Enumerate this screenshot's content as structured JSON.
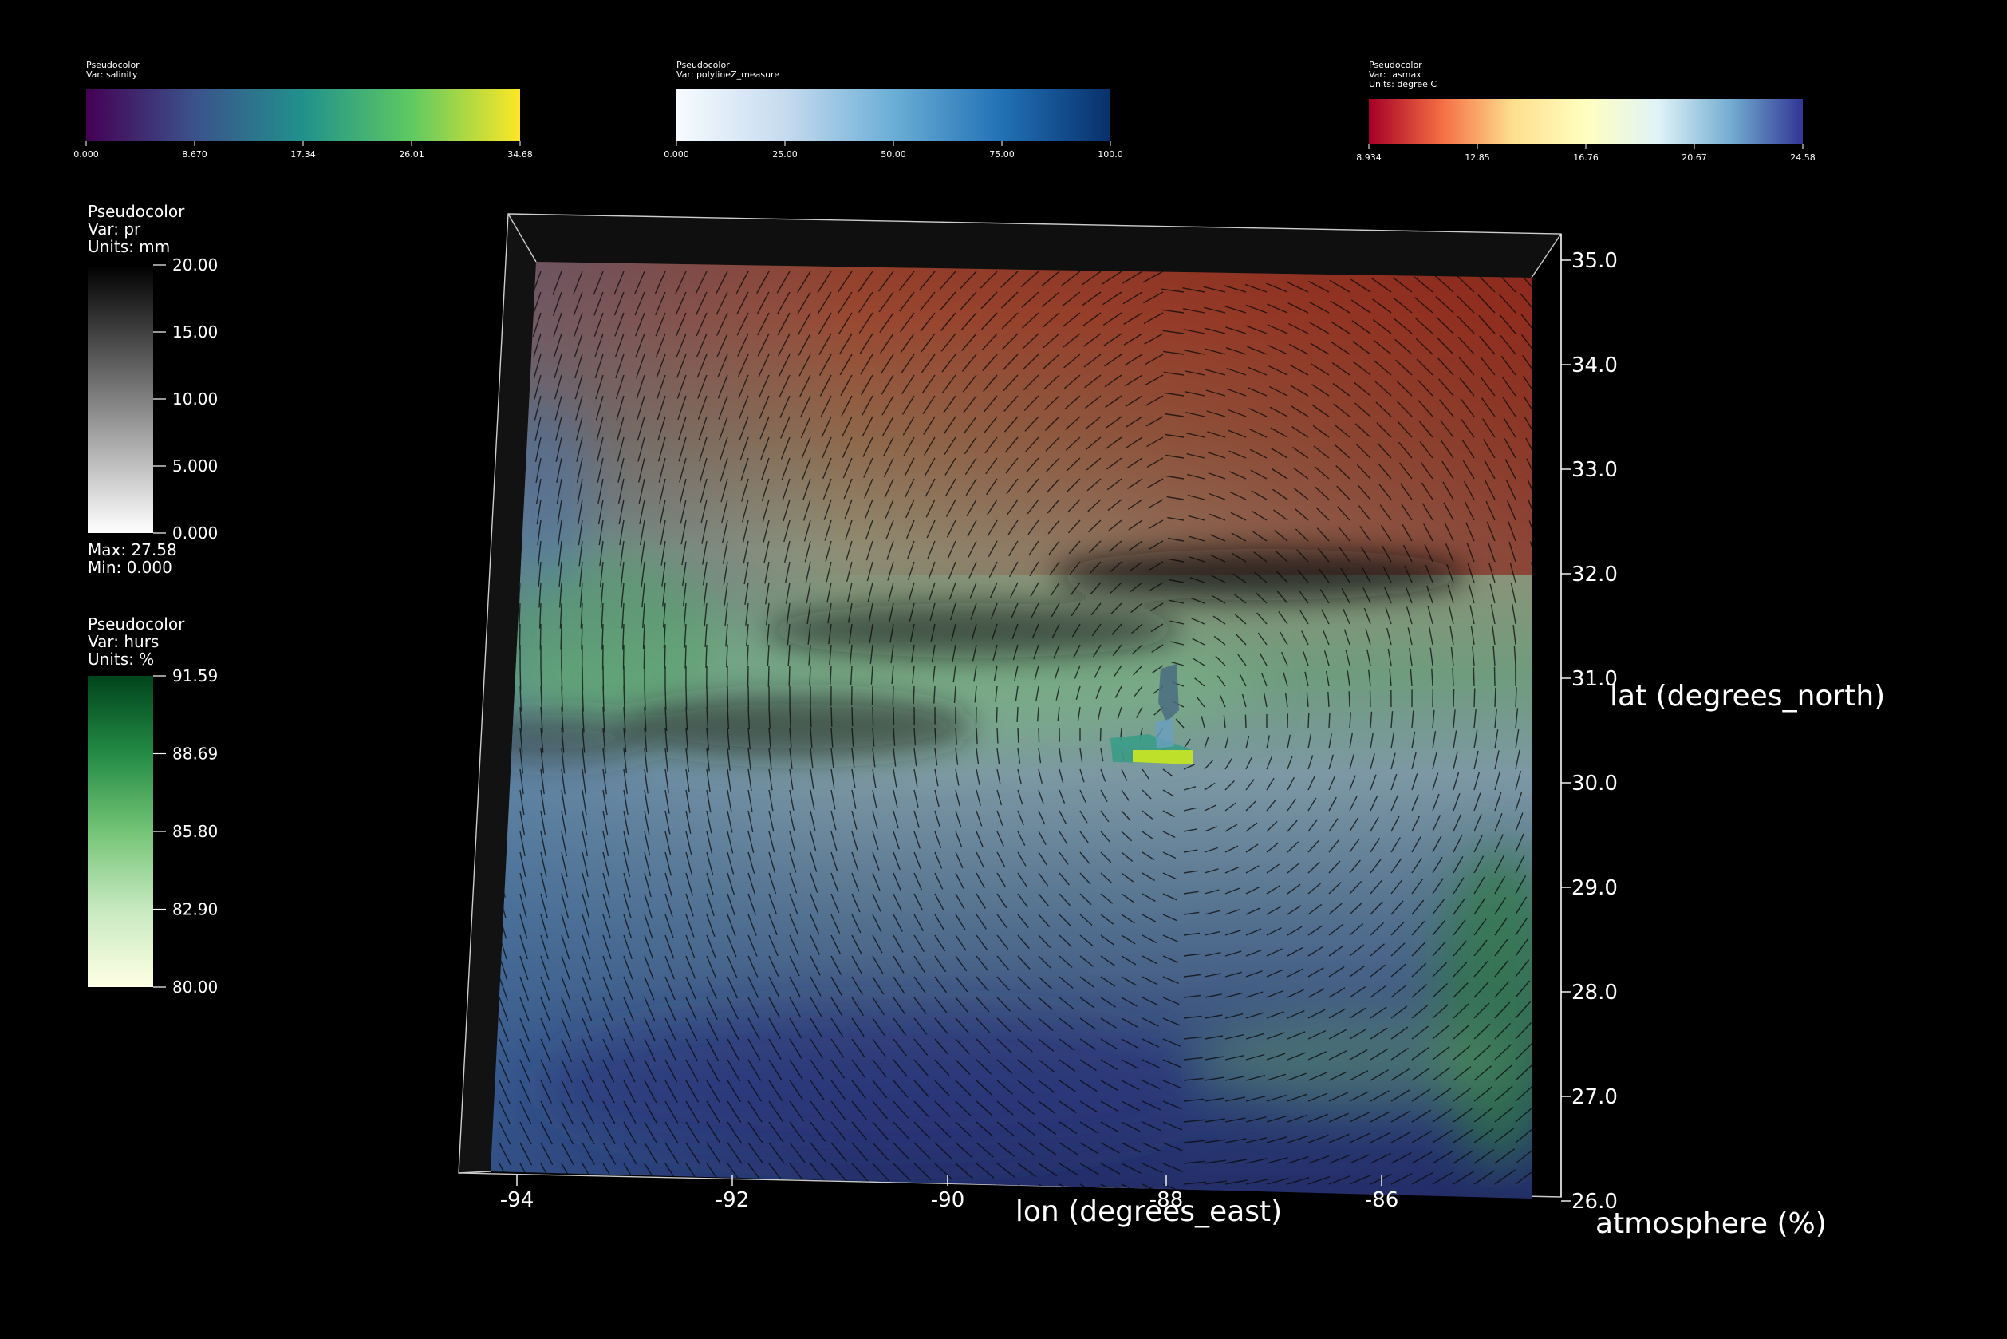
{
  "legends_top": [
    {
      "title": "Pseudocolor",
      "var_line": "Var: salinity",
      "units_line": "",
      "ticks": [
        "0.000",
        "8.670",
        "17.34",
        "26.01",
        "34.68"
      ],
      "colors": [
        "#440154",
        "#3b528b",
        "#21918c",
        "#5ec962",
        "#fde725"
      ]
    },
    {
      "title": "Pseudocolor",
      "var_line": "Var: polylineZ_measure",
      "units_line": "",
      "ticks": [
        "0.000",
        "25.00",
        "50.00",
        "75.00",
        "100.0"
      ],
      "colors": [
        "#f7fbff",
        "#c6dbef",
        "#6baed6",
        "#2171b5",
        "#08306b"
      ]
    },
    {
      "title": "Pseudocolor",
      "var_line": "Var: tasmax",
      "units_line": "Units: degree C",
      "ticks": [
        "8.934",
        "12.85",
        "16.76",
        "20.67",
        "24.58"
      ],
      "colors": [
        "#a50026",
        "#f46d43",
        "#fee090",
        "#ffffbf",
        "#e0f3f8",
        "#74add1",
        "#313695"
      ]
    }
  ],
  "legends_left": [
    {
      "title": "Pseudocolor",
      "var_line": "Var: pr",
      "units_line": "Units: mm",
      "ticks": [
        "20.00",
        "15.00",
        "10.00",
        "5.000",
        "0.000"
      ],
      "max_line": "Max:  27.58",
      "min_line": "Min:  0.000",
      "colors": [
        "#000000",
        "#404040",
        "#808080",
        "#c0c0c0",
        "#ffffff"
      ]
    },
    {
      "title": "Pseudocolor",
      "var_line": "Var: hurs",
      "units_line": "Units: %",
      "ticks": [
        "91.59",
        "88.69",
        "85.80",
        "82.90",
        "80.00"
      ],
      "colors": [
        "#00441b",
        "#238b45",
        "#74c476",
        "#c7e9c0",
        "#ffffe5"
      ]
    }
  ],
  "axes": {
    "x_ticks": [
      "-94",
      "-92",
      "-90",
      "-88",
      "-86"
    ],
    "x_title": "lon (degrees_east)",
    "y_ticks": [
      "35.0",
      "34.0",
      "33.0",
      "32.0",
      "31.0",
      "30.0",
      "29.0",
      "28.0",
      "27.0",
      "26.0"
    ],
    "y_title": "lat (degrees_north)",
    "z_title": "atmosphere (%)"
  }
}
